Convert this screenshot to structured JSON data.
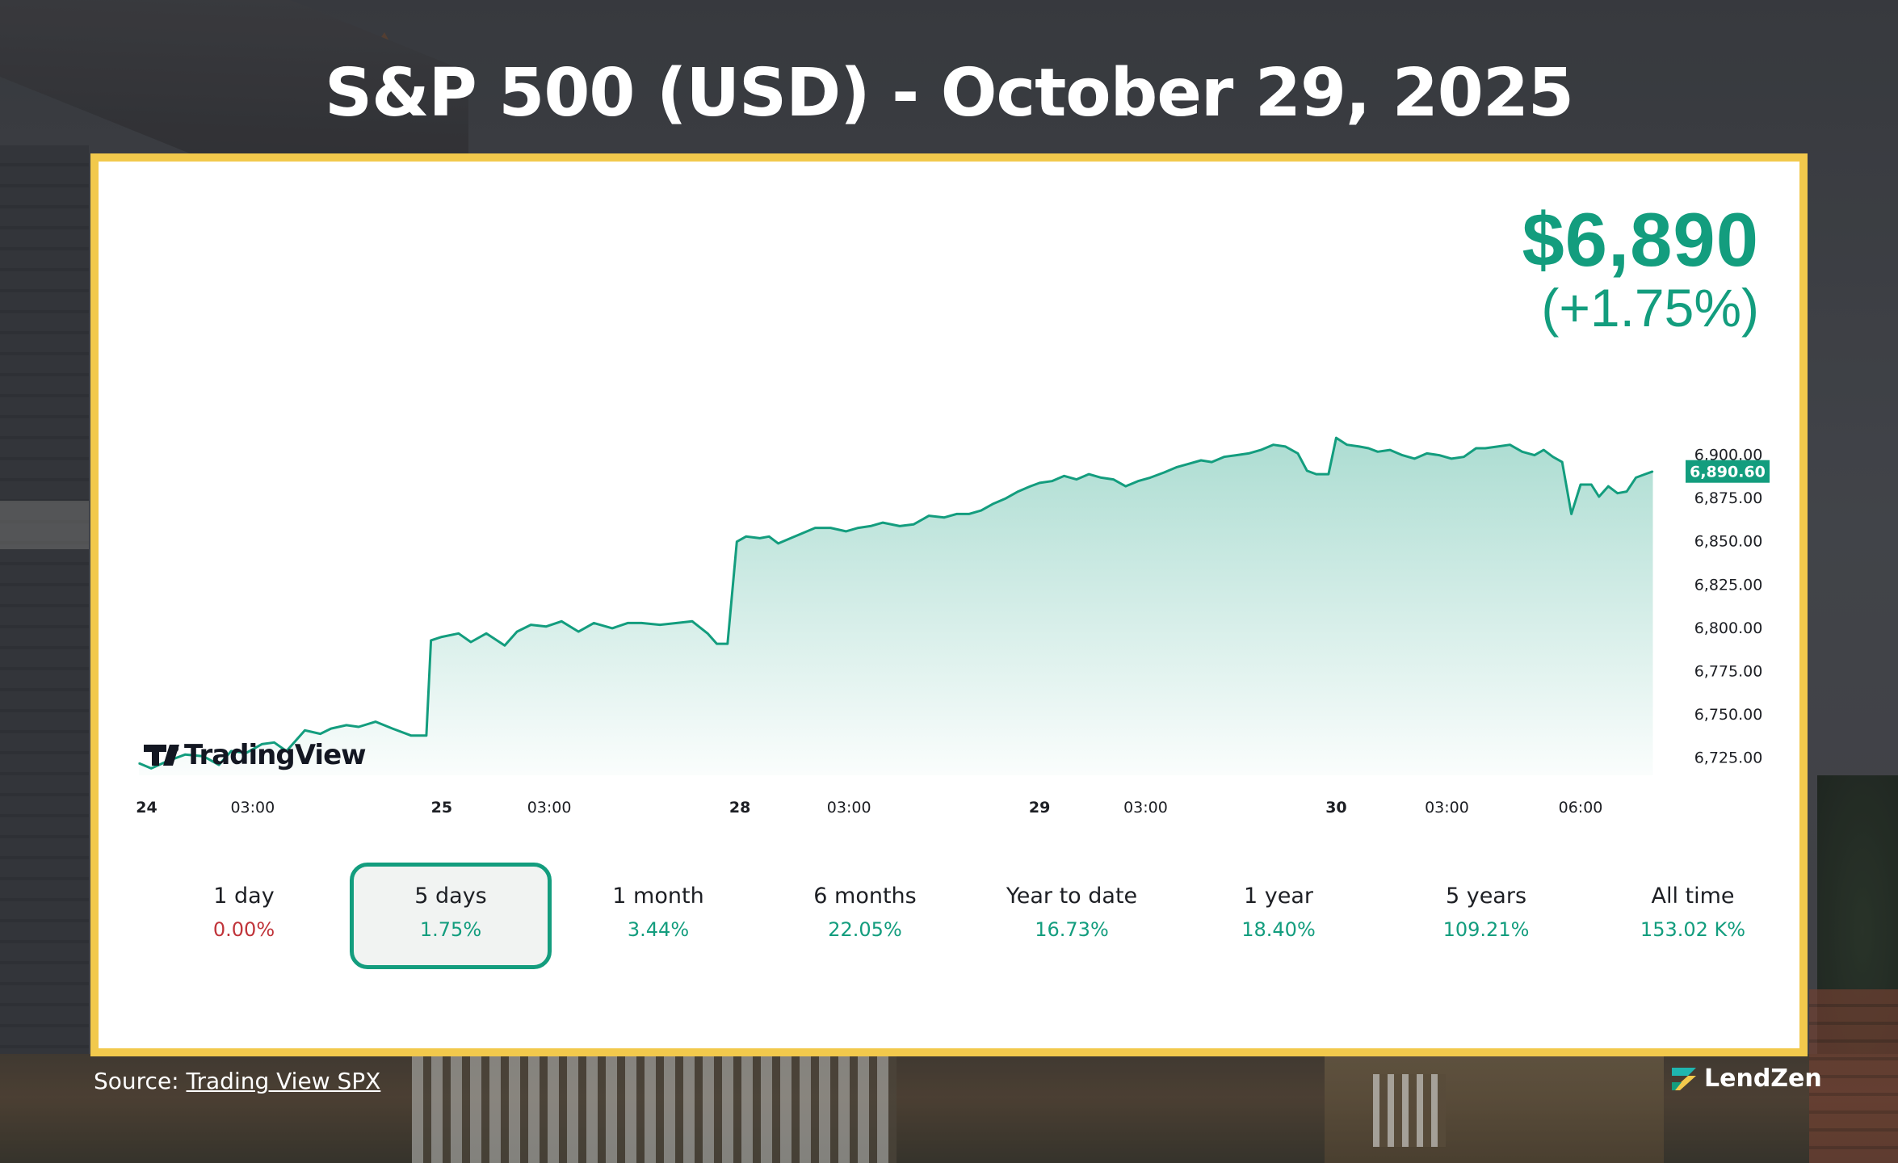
{
  "page": {
    "title": "S&P 500 (USD) - October 29, 2025",
    "source_prefix": "Source:",
    "source_link": "Trading View SPX",
    "brand": "LendZen"
  },
  "price": {
    "value": "$6,890",
    "change": "(+1.75%)",
    "last_label": "6,890.60"
  },
  "watermark": "TradingView",
  "colors": {
    "accent": "#139d7e",
    "negative": "#c0343a",
    "frame": "#f2c94c"
  },
  "tabs": [
    {
      "label": "1 day",
      "value": "0.00%",
      "tone": "neg",
      "active": false
    },
    {
      "label": "5 days",
      "value": "1.75%",
      "tone": "pos",
      "active": true
    },
    {
      "label": "1 month",
      "value": "3.44%",
      "tone": "pos",
      "active": false
    },
    {
      "label": "6 months",
      "value": "22.05%",
      "tone": "pos",
      "active": false
    },
    {
      "label": "Year to date",
      "value": "16.73%",
      "tone": "pos",
      "active": false
    },
    {
      "label": "1 year",
      "value": "18.40%",
      "tone": "pos",
      "active": false
    },
    {
      "label": "5 years",
      "value": "109.21%",
      "tone": "pos",
      "active": false
    },
    {
      "label": "All time",
      "value": "153.02 K%",
      "tone": "pos",
      "active": false
    }
  ],
  "chart_data": {
    "type": "area",
    "title": "",
    "xlabel": "",
    "ylabel": "",
    "ylim": [
      6715,
      6925
    ],
    "xlim": [
      0,
      100
    ],
    "y_ticks": [
      6725,
      6750,
      6775,
      6800,
      6825,
      6850,
      6875,
      6900
    ],
    "y_tick_labels": [
      "6,725.00",
      "6,750.00",
      "6,775.00",
      "6,800.00",
      "6,825.00",
      "6,850.00",
      "6,875.00",
      "6,900.00"
    ],
    "x_ticks": [
      {
        "x": 0.5,
        "label": "24",
        "bold": true
      },
      {
        "x": 7.4,
        "label": "03:00",
        "bold": false
      },
      {
        "x": 19.7,
        "label": "25",
        "bold": true
      },
      {
        "x": 26.7,
        "label": "03:00",
        "bold": false
      },
      {
        "x": 39.1,
        "label": "28",
        "bold": true
      },
      {
        "x": 46.2,
        "label": "03:00",
        "bold": false
      },
      {
        "x": 58.6,
        "label": "29",
        "bold": true
      },
      {
        "x": 65.5,
        "label": "03:00",
        "bold": false
      },
      {
        "x": 77.9,
        "label": "30",
        "bold": true
      },
      {
        "x": 85.1,
        "label": "03:00",
        "bold": false
      },
      {
        "x": 93.8,
        "label": "06:00",
        "bold": false
      }
    ],
    "grid": false,
    "series": [
      {
        "x": [
          0,
          0.8,
          1.8,
          3,
          4.2,
          5.2,
          6,
          7,
          8,
          8.8,
          9.6,
          10.8,
          11.8,
          12.5,
          13.5,
          14.3,
          15.4,
          16.5,
          17.7,
          18.7,
          19,
          19.7,
          20.8,
          21.6,
          22.6,
          23.8,
          24.6,
          25.5,
          26.5,
          27.5,
          28.6,
          29.6,
          30.8,
          31.8,
          32.7,
          33.9,
          35,
          36,
          37,
          37.6,
          38.3,
          38.9,
          39.5,
          40.4,
          41,
          41.6,
          42.4,
          43.2,
          44,
          45,
          46,
          46.8,
          47.6,
          48.4,
          49.5,
          50.4,
          51.4,
          52.4,
          53.2,
          54,
          54.8,
          55.6,
          56.4,
          57.2,
          58,
          58.6,
          59.4,
          60.2,
          61,
          61.8,
          62.6,
          63.4,
          64.2,
          65,
          65.8,
          66.7,
          67.5,
          68.3,
          69.1,
          69.8,
          70.6,
          71.4,
          72.2,
          73,
          73.8,
          74.6,
          75.4,
          76,
          76.6,
          77.4,
          77.9,
          78.6,
          79.4,
          80,
          80.6,
          81.4,
          82.2,
          83,
          83.8,
          84.6,
          85.4,
          86.2,
          87,
          87.6,
          88.4,
          89.2,
          90,
          90.8,
          91.4,
          92,
          92.6,
          93.2,
          93.8,
          94.5,
          95,
          95.6,
          96.2,
          96.8,
          97.4,
          98,
          98.5
        ],
        "y": [
          6722,
          6719,
          6723,
          6727,
          6726,
          6721,
          6729,
          6728,
          6733,
          6734,
          6729,
          6741,
          6739,
          6742,
          6744,
          6743,
          6746,
          6742,
          6738,
          6738,
          6793,
          6795,
          6797,
          6792,
          6797,
          6790,
          6798,
          6802,
          6801,
          6804,
          6798,
          6803,
          6800,
          6803,
          6803,
          6802,
          6803,
          6804,
          6797,
          6791,
          6791,
          6850,
          6853,
          6852,
          6853,
          6849,
          6852,
          6855,
          6858,
          6858,
          6856,
          6858,
          6859,
          6861,
          6859,
          6860,
          6865,
          6864,
          6866,
          6866,
          6868,
          6872,
          6875,
          6879,
          6882,
          6884,
          6885,
          6888,
          6886,
          6889,
          6887,
          6886,
          6882,
          6885,
          6887,
          6890,
          6893,
          6895,
          6897,
          6896,
          6899,
          6900,
          6901,
          6903,
          6906,
          6905,
          6901,
          6891,
          6889,
          6889,
          6910,
          6906,
          6905,
          6904,
          6902,
          6903,
          6900,
          6898,
          6901,
          6900,
          6898,
          6899,
          6904,
          6904,
          6905,
          6906,
          6902,
          6900,
          6903,
          6899,
          6896,
          6866,
          6883,
          6883,
          6876,
          6882,
          6878,
          6879,
          6887,
          6889,
          6890.6
        ],
        "name": ""
      }
    ]
  }
}
